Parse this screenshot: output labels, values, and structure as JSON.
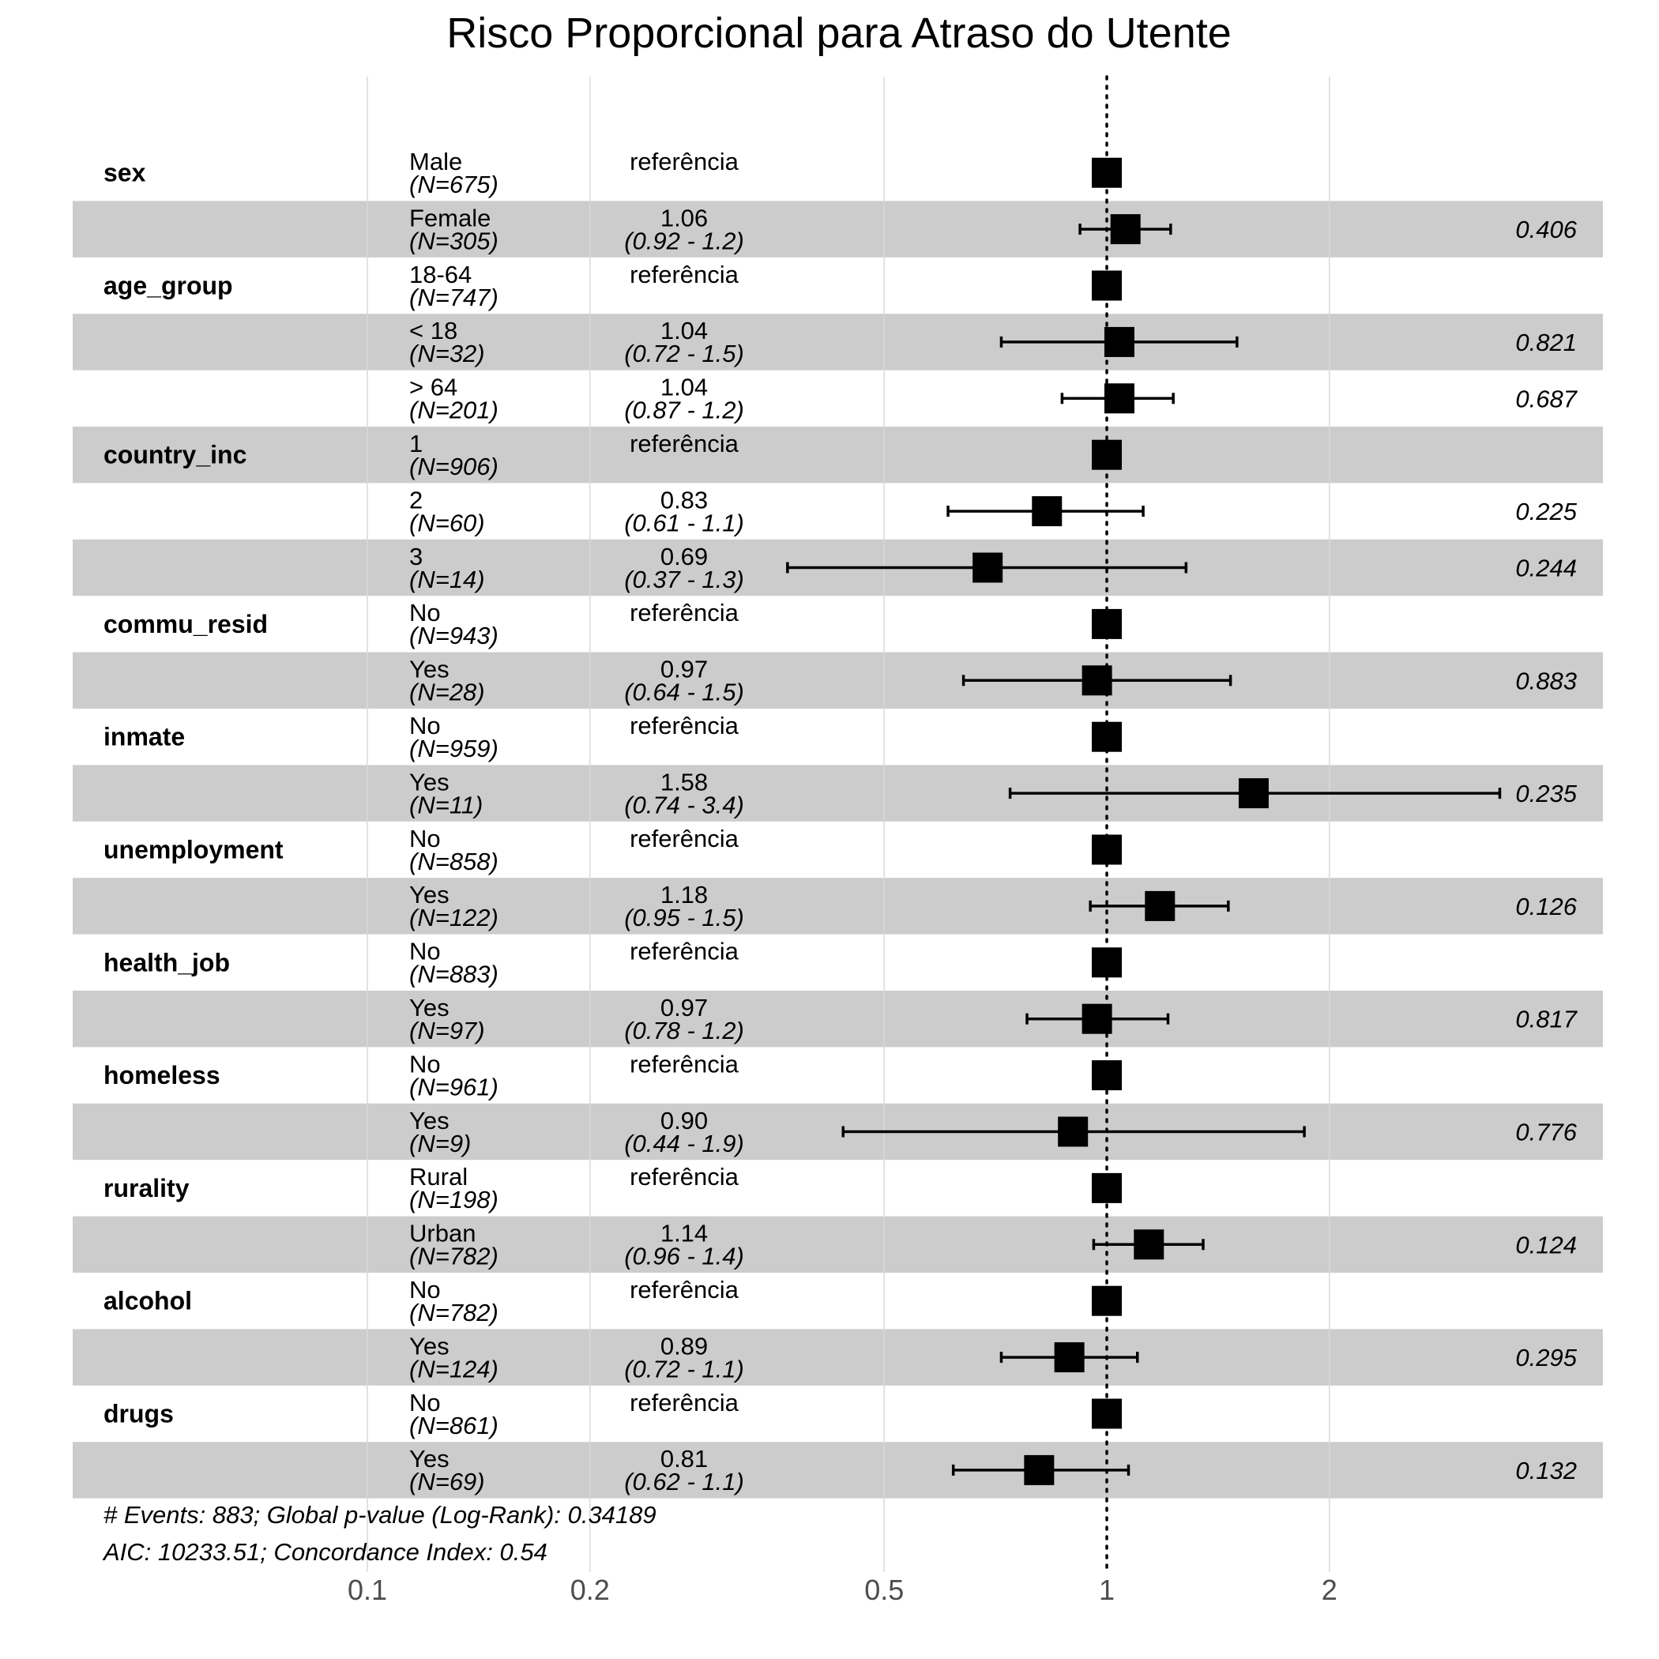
{
  "chart_data": {
    "type": "forest",
    "title": "Risco Proporcional para Atraso do Utente",
    "x_scale": "log",
    "xlim": [
      0.0375,
      4.32
    ],
    "x_ticks": [
      0.1,
      0.2,
      0.5,
      1,
      2
    ],
    "x_tick_labels": [
      "0.1",
      "0.2",
      "0.5",
      "1",
      "2"
    ],
    "reference_line": 1,
    "colors": {
      "stripe": "#cccccc",
      "grid": "#d9d9d9",
      "marker": "#000000",
      "tick_text": "#4d4d4d"
    },
    "rows": [
      {
        "var": "sex",
        "level": "Male",
        "n": "(N=675)",
        "est": "referência",
        "ci": "",
        "p": "",
        "hr": 1,
        "lo": null,
        "hi": null
      },
      {
        "var": "",
        "level": "Female",
        "n": "(N=305)",
        "est": "1.06",
        "ci": "(0.92 - 1.2)",
        "p": "0.406",
        "hr": 1.06,
        "lo": 0.92,
        "hi": 1.22
      },
      {
        "var": "age_group",
        "level": "18-64",
        "n": "(N=747)",
        "est": "referência",
        "ci": "",
        "p": "",
        "hr": 1,
        "lo": null,
        "hi": null
      },
      {
        "var": "",
        "level": "< 18",
        "n": "(N=32)",
        "est": "1.04",
        "ci": "(0.72 - 1.5)",
        "p": "0.821",
        "hr": 1.04,
        "lo": 0.72,
        "hi": 1.5
      },
      {
        "var": "",
        "level": "> 64",
        "n": "(N=201)",
        "est": "1.04",
        "ci": "(0.87 - 1.2)",
        "p": "0.687",
        "hr": 1.04,
        "lo": 0.87,
        "hi": 1.23
      },
      {
        "var": "country_inc",
        "level": "1",
        "n": "(N=906)",
        "est": "referência",
        "ci": "",
        "p": "",
        "hr": 1,
        "lo": null,
        "hi": null
      },
      {
        "var": "",
        "level": "2",
        "n": "(N=60)",
        "est": "0.83",
        "ci": "(0.61 - 1.1)",
        "p": "0.225",
        "hr": 0.83,
        "lo": 0.61,
        "hi": 1.12
      },
      {
        "var": "",
        "level": "3",
        "n": "(N=14)",
        "est": "0.69",
        "ci": "(0.37 - 1.3)",
        "p": "0.244",
        "hr": 0.69,
        "lo": 0.37,
        "hi": 1.28
      },
      {
        "var": "commu_resid",
        "level": "No",
        "n": "(N=943)",
        "est": "referência",
        "ci": "",
        "p": "",
        "hr": 1,
        "lo": null,
        "hi": null
      },
      {
        "var": "",
        "level": "Yes",
        "n": "(N=28)",
        "est": "0.97",
        "ci": "(0.64 - 1.5)",
        "p": "0.883",
        "hr": 0.97,
        "lo": 0.64,
        "hi": 1.47
      },
      {
        "var": "inmate",
        "level": "No",
        "n": "(N=959)",
        "est": "referência",
        "ci": "",
        "p": "",
        "hr": 1,
        "lo": null,
        "hi": null
      },
      {
        "var": "",
        "level": "Yes",
        "n": "(N=11)",
        "est": "1.58",
        "ci": "(0.74 - 3.4)",
        "p": "0.235",
        "hr": 1.58,
        "lo": 0.74,
        "hi": 3.4
      },
      {
        "var": "unemployment",
        "level": "No",
        "n": "(N=858)",
        "est": "referência",
        "ci": "",
        "p": "",
        "hr": 1,
        "lo": null,
        "hi": null
      },
      {
        "var": "",
        "level": "Yes",
        "n": "(N=122)",
        "est": "1.18",
        "ci": "(0.95 - 1.5)",
        "p": "0.126",
        "hr": 1.18,
        "lo": 0.95,
        "hi": 1.46
      },
      {
        "var": "health_job",
        "level": "No",
        "n": "(N=883)",
        "est": "referência",
        "ci": "",
        "p": "",
        "hr": 1,
        "lo": null,
        "hi": null
      },
      {
        "var": "",
        "level": "Yes",
        "n": "(N=97)",
        "est": "0.97",
        "ci": "(0.78 - 1.2)",
        "p": "0.817",
        "hr": 0.97,
        "lo": 0.78,
        "hi": 1.21
      },
      {
        "var": "homeless",
        "level": "No",
        "n": "(N=961)",
        "est": "referência",
        "ci": "",
        "p": "",
        "hr": 1,
        "lo": null,
        "hi": null
      },
      {
        "var": "",
        "level": "Yes",
        "n": "(N=9)",
        "est": "0.90",
        "ci": "(0.44 - 1.9)",
        "p": "0.776",
        "hr": 0.9,
        "lo": 0.44,
        "hi": 1.85
      },
      {
        "var": "rurality",
        "level": "Rural",
        "n": "(N=198)",
        "est": "referência",
        "ci": "",
        "p": "",
        "hr": 1,
        "lo": null,
        "hi": null
      },
      {
        "var": "",
        "level": "Urban",
        "n": "(N=782)",
        "est": "1.14",
        "ci": "(0.96 - 1.4)",
        "p": "0.124",
        "hr": 1.14,
        "lo": 0.96,
        "hi": 1.35
      },
      {
        "var": "alcohol",
        "level": "No",
        "n": "(N=782)",
        "est": "referência",
        "ci": "",
        "p": "",
        "hr": 1,
        "lo": null,
        "hi": null
      },
      {
        "var": "",
        "level": "Yes",
        "n": "(N=124)",
        "est": "0.89",
        "ci": "(0.72 - 1.1)",
        "p": "0.295",
        "hr": 0.89,
        "lo": 0.72,
        "hi": 1.1
      },
      {
        "var": "drugs",
        "level": "No",
        "n": "(N=861)",
        "est": "referência",
        "ci": "",
        "p": "",
        "hr": 1,
        "lo": null,
        "hi": null
      },
      {
        "var": "",
        "level": "Yes",
        "n": "(N=69)",
        "est": "0.81",
        "ci": "(0.62 - 1.1)",
        "p": "0.132",
        "hr": 0.81,
        "lo": 0.62,
        "hi": 1.07
      }
    ],
    "footnotes": [
      "# Events: 883; Global p-value (Log-Rank): 0.34189",
      "AIC: 10233.51; Concordance Index: 0.54"
    ]
  }
}
